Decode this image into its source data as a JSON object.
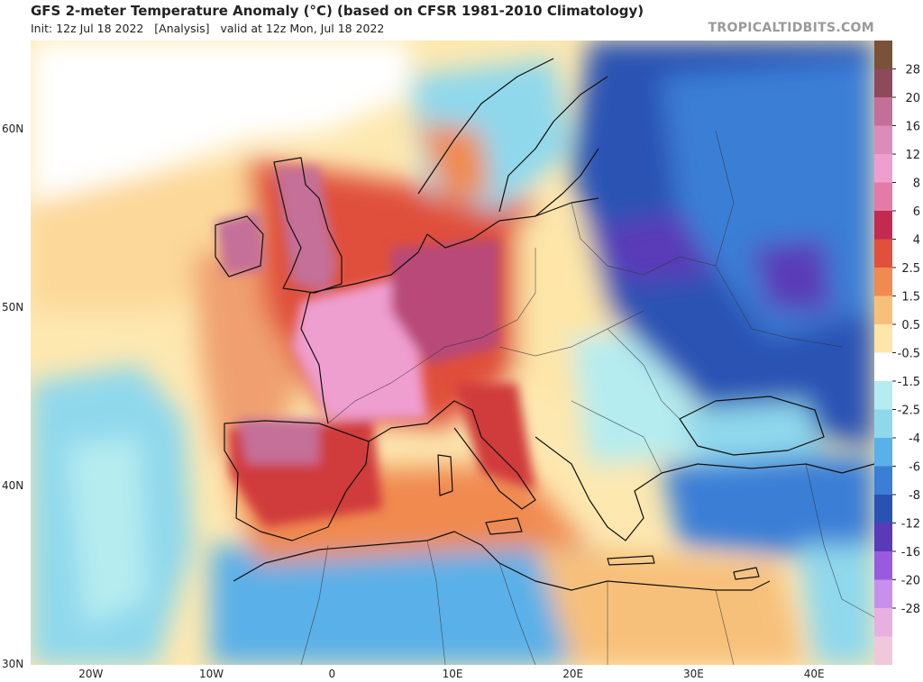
{
  "header": {
    "title": "GFS 2-meter Temperature Anomaly (°C) (based on CFSR 1981-2010 Climatology)",
    "subtitle": "Init: 12z Jul 18 2022   [Analysis]   valid at 12z Mon, Jul 18 2022",
    "source": "TROPICALTIDBITS.COM"
  },
  "map": {
    "region": "Europe, North Africa and Middle East",
    "lon_range": [
      -25,
      45
    ],
    "lat_range": [
      30,
      65
    ],
    "lat_ticks": [
      "60N",
      "50N",
      "40N",
      "30N"
    ],
    "lat_tick_values": [
      60,
      50,
      40,
      30
    ],
    "lon_ticks": [
      "20W",
      "10W",
      "0",
      "10E",
      "20E",
      "30E",
      "40E"
    ],
    "lon_tick_values": [
      -20,
      -10,
      0,
      10,
      20,
      30,
      40
    ]
  },
  "colorbar": {
    "labels": [
      "28",
      "20",
      "16",
      "12",
      "8",
      "6",
      "4",
      "2.5",
      "1.5",
      "0.5",
      "-0.5",
      "-1.5",
      "-2.5",
      "-4",
      "-6",
      "-8",
      "-12",
      "-16",
      "-20",
      "-28"
    ],
    "colors": [
      "#7a5238",
      "#8e4a5a",
      "#c46f98",
      "#dc8cb8",
      "#ef9ed0",
      "#e47aa8",
      "#c42a50",
      "#e0503a",
      "#f08a50",
      "#f7c07a",
      "#fde6a8",
      "#ffffff",
      "#b5ecf0",
      "#8fd8ec",
      "#5ab0e8",
      "#3a7ed6",
      "#2a52b4",
      "#5a3ab8",
      "#9a5ae0",
      "#c890ec",
      "#e8b0e0",
      "#f0c8dc"
    ]
  }
}
